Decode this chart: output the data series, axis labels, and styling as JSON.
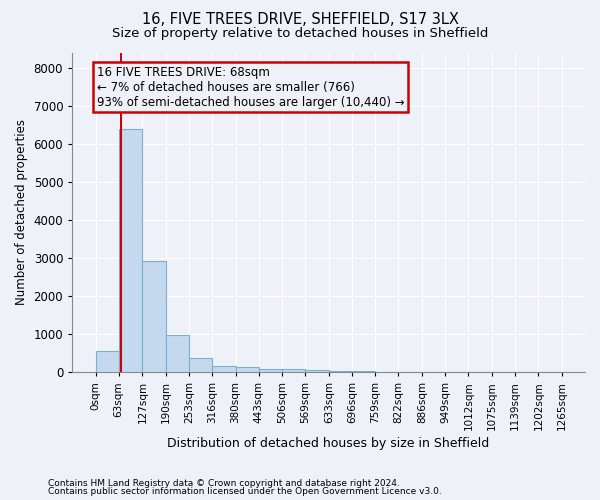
{
  "title_line1": "16, FIVE TREES DRIVE, SHEFFIELD, S17 3LX",
  "title_line2": "Size of property relative to detached houses in Sheffield",
  "xlabel": "Distribution of detached houses by size in Sheffield",
  "ylabel": "Number of detached properties",
  "bar_color": "#c5d9ee",
  "bar_edge_color": "#7aafd4",
  "bin_edges": [
    0,
    63,
    127,
    190,
    253,
    316,
    380,
    443,
    506,
    569,
    633,
    696,
    759,
    822,
    886,
    949,
    1012,
    1075,
    1139,
    1202,
    1265
  ],
  "bar_heights": [
    570,
    6380,
    2930,
    970,
    380,
    175,
    130,
    90,
    80,
    55,
    38,
    28,
    18,
    14,
    10,
    8,
    6,
    5,
    4,
    3
  ],
  "property_size": 68,
  "red_line_color": "#cc0000",
  "annotation_line1": "16 FIVE TREES DRIVE: 68sqm",
  "annotation_line2": "← 7% of detached houses are smaller (766)",
  "annotation_line3": "93% of semi-detached houses are larger (10,440) →",
  "annotation_box_color": "#cc0000",
  "ylim": [
    0,
    8400
  ],
  "yticks": [
    0,
    1000,
    2000,
    3000,
    4000,
    5000,
    6000,
    7000,
    8000
  ],
  "footnote1": "Contains HM Land Registry data © Crown copyright and database right 2024.",
  "footnote2": "Contains public sector information licensed under the Open Government Licence v3.0.",
  "background_color": "#eef2f8",
  "grid_color": "#ffffff",
  "title_fontsize": 10.5,
  "subtitle_fontsize": 9.5,
  "tick_fontsize": 7.5,
  "ylabel_fontsize": 8.5,
  "xlabel_fontsize": 9,
  "annotation_fontsize": 8.5,
  "footnote_fontsize": 6.5
}
